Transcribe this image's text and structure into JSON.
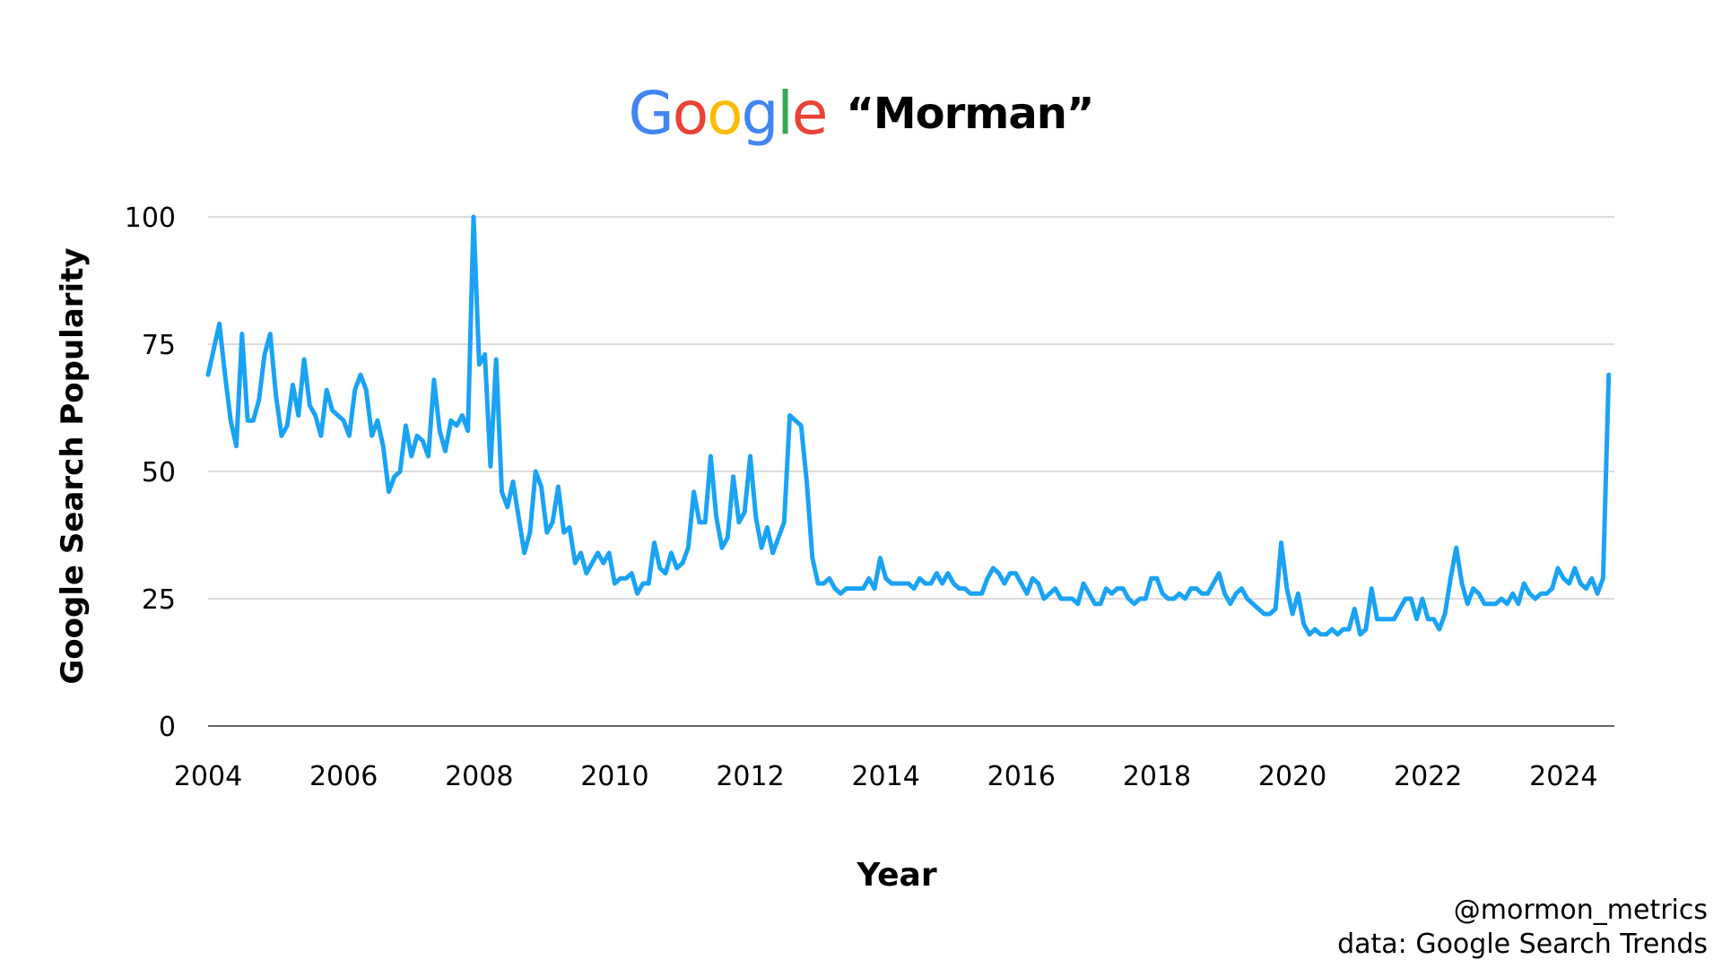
{
  "header": {
    "logo_letters": [
      {
        "char": "G",
        "color": "#4285F4"
      },
      {
        "char": "o",
        "color": "#EA4335"
      },
      {
        "char": "o",
        "color": "#FBBC05"
      },
      {
        "char": "g",
        "color": "#4285F4"
      },
      {
        "char": "l",
        "color": "#34A853"
      },
      {
        "char": "e",
        "color": "#EA4335"
      }
    ],
    "logo_text": "Google",
    "query": "“Morman”"
  },
  "footer": {
    "handle": "@mormon_metrics",
    "source": "data: Google Search Trends"
  },
  "chart_data": {
    "type": "line",
    "title": "",
    "xlabel": "Year",
    "ylabel": "Google Search Popularity",
    "xlim": [
      2004,
      2024.75
    ],
    "ylim": [
      0,
      100
    ],
    "x_ticks": [
      2004,
      2006,
      2008,
      2010,
      2012,
      2014,
      2016,
      2018,
      2020,
      2022,
      2024
    ],
    "y_ticks": [
      0,
      25,
      50,
      75,
      100
    ],
    "grid": "horizontal",
    "line_color": "#1AA3F5",
    "x_start": 2004.0,
    "x_step_months": 1,
    "series": [
      {
        "values": [
          69,
          74,
          79,
          69,
          60,
          55,
          77,
          60,
          60,
          64,
          73,
          77,
          65,
          57,
          59,
          67,
          61,
          72,
          63,
          61,
          57,
          66,
          62,
          61,
          60,
          57,
          66,
          69,
          66,
          57,
          60,
          55,
          46,
          49,
          50,
          59,
          53,
          57,
          56,
          53,
          68,
          58,
          54,
          60,
          59,
          61,
          58,
          100,
          71,
          73,
          51,
          72,
          46,
          43,
          48,
          41,
          34,
          38,
          50,
          47,
          38,
          40,
          47,
          38,
          39,
          32,
          34,
          30,
          32,
          34,
          32,
          34,
          28,
          29,
          29,
          30,
          26,
          28,
          28,
          36,
          31,
          30,
          34,
          31,
          32,
          35,
          46,
          40,
          40,
          53,
          41,
          35,
          37,
          49,
          40,
          42,
          53,
          41,
          35,
          39,
          34,
          37,
          40,
          61,
          60,
          59,
          48,
          33,
          28,
          28,
          29,
          27,
          26,
          27,
          27,
          27,
          27,
          29,
          27,
          33,
          29,
          28,
          28,
          28,
          28,
          27,
          29,
          28,
          28,
          30,
          28,
          30,
          28,
          27,
          27,
          26,
          26,
          26,
          29,
          31,
          30,
          28,
          30,
          30,
          28,
          26,
          29,
          28,
          25,
          26,
          27,
          25,
          25,
          25,
          24,
          28,
          26,
          24,
          24,
          27,
          26,
          27,
          27,
          25,
          24,
          25,
          25,
          29,
          29,
          26,
          25,
          25,
          26,
          25,
          27,
          27,
          26,
          26,
          28,
          30,
          26,
          24,
          26,
          27,
          25,
          24,
          23,
          22,
          22,
          23,
          36,
          27,
          22,
          26,
          20,
          18,
          19,
          18,
          18,
          19,
          18,
          19,
          19,
          23,
          18,
          19,
          27,
          21,
          21,
          21,
          21,
          23,
          25,
          25,
          21,
          25,
          21,
          21,
          19,
          22,
          29,
          35,
          28,
          24,
          27,
          26,
          24,
          24,
          24,
          25,
          24,
          26,
          24,
          28,
          26,
          25,
          26,
          26,
          27,
          31,
          29,
          28,
          31,
          28,
          27,
          29,
          26,
          29,
          69
        ]
      }
    ]
  }
}
